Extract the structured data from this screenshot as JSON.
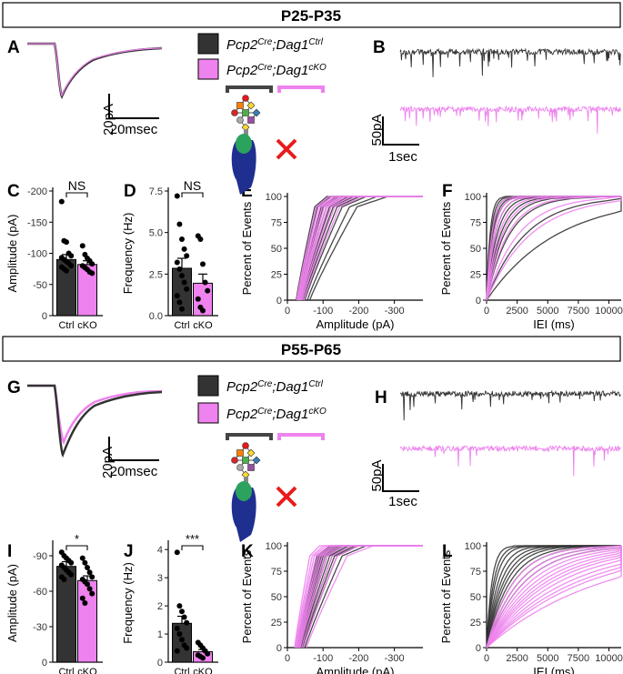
{
  "colors": {
    "ctrl": "#333333",
    "cko": "#ee82ee",
    "marker": "#e81c1c"
  },
  "sections": [
    {
      "title": "P25-P35"
    },
    {
      "title": "P55-P65"
    }
  ],
  "panel_letters": {
    "top": [
      "A",
      "B",
      "C",
      "D",
      "E",
      "F"
    ],
    "bottom": [
      "G",
      "H",
      "I",
      "J",
      "K",
      "L"
    ]
  },
  "legend": {
    "ctrl": {
      "base": "Pcp2",
      "sup1": "Cre",
      "sep": ";Dag1",
      "sup2": "Ctrl"
    },
    "cko": {
      "base": "Pcp2",
      "sup1": "Cre",
      "sep": ";Dag1",
      "sup2": "cKO"
    }
  },
  "scalebars": {
    "avg_y": "20pA",
    "avg_x": "20msec",
    "trace_y": "50pA",
    "trace_x": "1sec"
  },
  "cat_labels": [
    "Ctrl",
    "cKO"
  ],
  "chart_data": [
    {
      "id": "C",
      "type": "bar",
      "title": "",
      "ylabel": "Amplitude (pA)",
      "categories": [
        "Ctrl",
        "cKO"
      ],
      "values": [
        -90,
        -82
      ],
      "errors": [
        8,
        6
      ],
      "ylim": [
        0,
        -200
      ],
      "yticks": [
        0,
        -50,
        -100,
        -150,
        -200
      ],
      "ytick_labels": [
        "0",
        "-50",
        "-100",
        "-150",
        "-200"
      ],
      "significance": "NS",
      "points": [
        [
          -183,
          -120,
          -118,
          -100,
          -96,
          -93,
          -90,
          -87,
          -84,
          -80,
          -78,
          -75,
          -72
        ],
        [
          -112,
          -98,
          -92,
          -88,
          -83,
          -80,
          -77,
          -74,
          -70,
          -68
        ]
      ]
    },
    {
      "id": "D",
      "type": "bar",
      "ylabel": "Frequency (Hz)",
      "categories": [
        "Ctrl",
        "cKO"
      ],
      "values": [
        2.85,
        1.95
      ],
      "errors": [
        0.6,
        0.55
      ],
      "ylim": [
        0,
        7.5
      ],
      "yticks": [
        0,
        2.5,
        5.0,
        7.5
      ],
      "ytick_labels": [
        "0.0",
        "2.5",
        "5.0",
        "7.5"
      ],
      "significance": "NS",
      "points": [
        [
          7.2,
          5.5,
          4.6,
          4.0,
          3.6,
          3.2,
          2.8,
          2.4,
          2.0,
          1.6,
          1.2,
          0.8,
          0.4
        ],
        [
          4.8,
          4.6,
          3.1,
          2.0,
          1.5,
          1.0,
          0.5,
          0.3
        ]
      ]
    },
    {
      "id": "E",
      "type": "line",
      "ylabel": "Percent of Events",
      "xlabel": "Amplitude (pA)",
      "xlim": [
        0,
        -380
      ],
      "ylim": [
        0,
        100
      ],
      "xticks": [
        0,
        -100,
        -200,
        -300
      ],
      "xtick_labels": [
        "0",
        "-100",
        "-200",
        "-300"
      ],
      "yticks": [
        0,
        25,
        50,
        75,
        100
      ],
      "ytick_labels": [
        "0",
        "25",
        "50",
        "75",
        "100"
      ],
      "series": [
        {
          "name": "Ctrl",
          "medians": [
            -55,
            -60,
            -62,
            -68,
            -72,
            -78,
            -85,
            -92,
            -100,
            -110,
            -125,
            -140
          ]
        },
        {
          "name": "cKO",
          "medians": [
            -58,
            -62,
            -66,
            -70,
            -74,
            -78,
            -82,
            -88,
            -95,
            -105
          ]
        }
      ]
    },
    {
      "id": "F",
      "type": "line",
      "ylabel": "Percent of Events",
      "xlabel": "IEI (ms)",
      "xlim": [
        0,
        11000
      ],
      "ylim": [
        0,
        100
      ],
      "xticks": [
        0,
        2500,
        5000,
        7500,
        10000
      ],
      "xtick_labels": [
        "0",
        "2500",
        "5000",
        "7500",
        "10000"
      ],
      "yticks": [
        0,
        25,
        50,
        75,
        100
      ],
      "ytick_labels": [
        "0",
        "25",
        "50",
        "75",
        "100"
      ],
      "series": [
        {
          "name": "Ctrl",
          "medians": [
            200,
            250,
            300,
            350,
            400,
            500,
            600,
            800,
            1000,
            1300,
            2200,
            4000
          ]
        },
        {
          "name": "cKO",
          "medians": [
            300,
            400,
            500,
            700,
            900,
            1200,
            1800,
            2500
          ]
        }
      ]
    },
    {
      "id": "I",
      "type": "bar",
      "ylabel": "Amplitude (pA)",
      "categories": [
        "Ctrl",
        "cKO"
      ],
      "values": [
        -81,
        -69
      ],
      "errors": [
        4,
        4
      ],
      "ylim": [
        0,
        -100
      ],
      "yticks": [
        0,
        -30,
        -60,
        -90
      ],
      "ytick_labels": [
        "0",
        "-30",
        "-60",
        "-90"
      ],
      "significance": "*",
      "points": [
        [
          -93,
          -90,
          -88,
          -86,
          -84,
          -82,
          -80,
          -78,
          -76,
          -74,
          -72,
          -70
        ],
        [
          -88,
          -84,
          -80,
          -76,
          -72,
          -70,
          -68,
          -66,
          -62,
          -58,
          -54,
          -50
        ]
      ]
    },
    {
      "id": "J",
      "type": "bar",
      "ylabel": "Frequency (Hz)",
      "categories": [
        "Ctrl",
        "cKO"
      ],
      "values": [
        1.38,
        0.37
      ],
      "errors": [
        0.25,
        0.08
      ],
      "ylim": [
        0,
        4.2
      ],
      "yticks": [
        0,
        1,
        2,
        3,
        4
      ],
      "ytick_labels": [
        "0",
        "1",
        "2",
        "3",
        "4"
      ],
      "significance": "***",
      "points": [
        [
          3.9,
          2.0,
          1.8,
          1.6,
          1.4,
          1.2,
          1.0,
          0.8,
          0.6,
          0.5,
          0.4
        ],
        [
          0.7,
          0.6,
          0.5,
          0.4,
          0.3,
          0.25,
          0.2,
          0.15
        ]
      ]
    },
    {
      "id": "K",
      "type": "line",
      "ylabel": "Percent of Events",
      "xlabel": "Amplitude (pA)",
      "xlim": [
        0,
        -380
      ],
      "ylim": [
        0,
        100
      ],
      "xticks": [
        0,
        -100,
        -200,
        -300
      ],
      "xtick_labels": [
        "0",
        "-100",
        "-200",
        "-300"
      ],
      "yticks": [
        0,
        25,
        50,
        75,
        100
      ],
      "ytick_labels": [
        "0",
        "25",
        "50",
        "75",
        "100"
      ],
      "series": [
        {
          "name": "Ctrl",
          "medians": [
            -60,
            -64,
            -68,
            -72,
            -76,
            -80,
            -85,
            -90,
            -95,
            -100,
            -110
          ]
        },
        {
          "name": "cKO",
          "medians": [
            -45,
            -50,
            -54,
            -58,
            -62,
            -66,
            -70,
            -75,
            -80,
            -90,
            -100,
            -120
          ]
        }
      ]
    },
    {
      "id": "L",
      "type": "line",
      "ylabel": "Percent of Events",
      "xlabel": "IEI (ms)",
      "xlim": [
        0,
        11000
      ],
      "ylim": [
        0,
        100
      ],
      "xticks": [
        0,
        2500,
        5000,
        7500,
        10000
      ],
      "xtick_labels": [
        "0",
        "2500",
        "5000",
        "7500",
        "10000"
      ],
      "yticks": [
        0,
        25,
        50,
        75,
        100
      ],
      "ytick_labels": [
        "0",
        "25",
        "50",
        "75",
        "100"
      ],
      "series": [
        {
          "name": "Ctrl",
          "medians": [
            300,
            400,
            500,
            650,
            800,
            950,
            1100,
            1300,
            1500,
            1800,
            2100
          ]
        },
        {
          "name": "cKO",
          "medians": [
            1500,
            1800,
            2100,
            2400,
            2700,
            3000,
            3300,
            3600,
            4000,
            4500,
            5000,
            5500,
            6500
          ]
        }
      ]
    }
  ]
}
